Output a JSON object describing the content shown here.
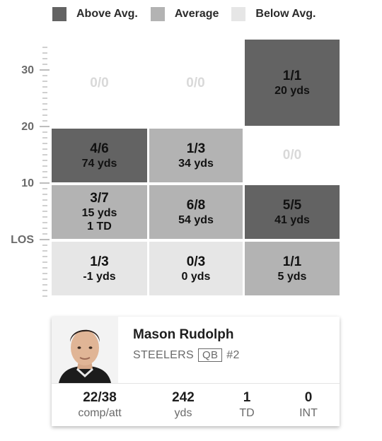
{
  "legend": [
    {
      "label": "Above Avg.",
      "color": "#636363"
    },
    {
      "label": "Average",
      "color": "#b3b3b3"
    },
    {
      "label": "Below Avg.",
      "color": "#e6e6e6"
    }
  ],
  "ruler": {
    "labels": [
      "30",
      "20",
      "10",
      "LOS"
    ]
  },
  "zones": {
    "deep_left": {
      "ratio": "0/0",
      "level": "empty"
    },
    "deep_middle": {
      "ratio": "0/0",
      "level": "empty"
    },
    "deep_right": {
      "ratio": "1/1",
      "yds": "20 yds",
      "level": "above"
    },
    "intermediate_left": {
      "ratio": "4/6",
      "yds": "74 yds",
      "level": "above"
    },
    "intermediate_middle": {
      "ratio": "1/3",
      "yds": "34 yds",
      "level": "average"
    },
    "intermediate_right": {
      "ratio": "0/0",
      "level": "empty"
    },
    "short_left": {
      "ratio": "3/7",
      "yds": "15 yds",
      "td": "1 TD",
      "level": "average"
    },
    "short_middle": {
      "ratio": "6/8",
      "yds": "54 yds",
      "level": "average"
    },
    "short_right": {
      "ratio": "5/5",
      "yds": "41 yds",
      "level": "above"
    },
    "behind_left": {
      "ratio": "1/3",
      "yds": "-1 yds",
      "level": "below"
    },
    "behind_middle": {
      "ratio": "0/3",
      "yds": "0 yds",
      "level": "below"
    },
    "behind_right": {
      "ratio": "1/1",
      "yds": "5 yds",
      "level": "average"
    }
  },
  "player": {
    "name": "Mason Rudolph",
    "team": "STEELERS",
    "position": "QB",
    "number": "#2",
    "stats": [
      {
        "value": "22/38",
        "label": "comp/att"
      },
      {
        "value": "242",
        "label": "yds"
      },
      {
        "value": "1",
        "label": "TD"
      },
      {
        "value": "0",
        "label": "INT"
      }
    ]
  }
}
